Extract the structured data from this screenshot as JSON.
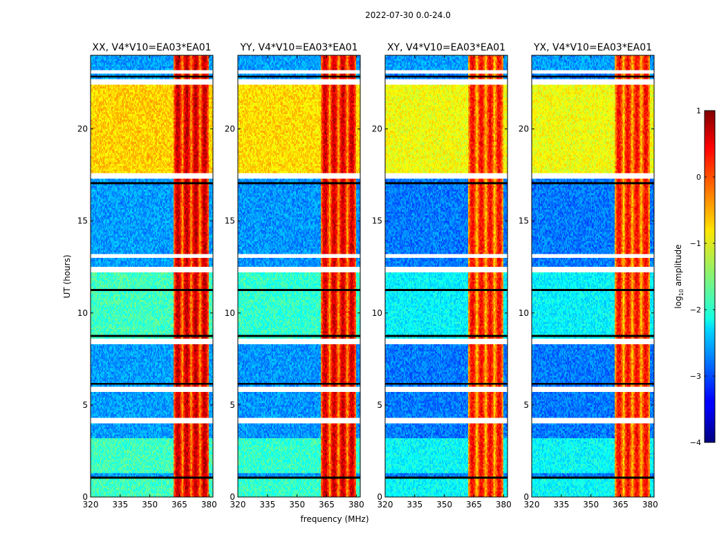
{
  "figure": {
    "suptitle": "2022-07-30 0.0-24.0"
  },
  "chart_data": {
    "type": "heatmap",
    "panels": [
      {
        "title": "XX, V4*V10=EA03*EA01",
        "level_scale": 1.0
      },
      {
        "title": "YY, V4*V10=EA03*EA01",
        "level_scale": 0.9
      },
      {
        "title": "XY, V4*V10=EA03*EA01",
        "level_scale": 0.55
      },
      {
        "title": "YX, V4*V10=EA03*EA01",
        "level_scale": 0.55
      }
    ],
    "xlabel": "frequency (MHz)",
    "ylabel": "UT (hours)",
    "xlim": [
      320,
      382
    ],
    "ylim": [
      0,
      24
    ],
    "xticks": [
      "320",
      "335",
      "350",
      "365",
      "380"
    ],
    "xtick_values": [
      320,
      335,
      350,
      365,
      380
    ],
    "yticks": [
      "0",
      "5",
      "10",
      "15",
      "20"
    ],
    "ytick_values": [
      0,
      5,
      10,
      15,
      20
    ],
    "gap_hours_white": [
      [
        4.0,
        4.3
      ],
      [
        5.7,
        5.95
      ],
      [
        8.3,
        8.6
      ],
      [
        12.2,
        12.5
      ],
      [
        13.0,
        13.2
      ],
      [
        17.3,
        17.55
      ],
      [
        22.4,
        22.7
      ],
      [
        23.0,
        23.2
      ]
    ],
    "gap_hours_black": [
      [
        0.95,
        1.05
      ],
      [
        1.3,
        1.35
      ],
      [
        6.1,
        6.15
      ],
      [
        8.7,
        8.75
      ],
      [
        11.2,
        11.25
      ],
      [
        17.0,
        17.05
      ],
      [
        22.85,
        22.9
      ]
    ],
    "rfi_band_mhz": [
      362,
      380
    ],
    "colorbar": {
      "label": "log10 amplitude",
      "label_main": "log",
      "label_sub": "10",
      "label_rest": " amplitude",
      "range": [
        -4,
        1
      ],
      "ticks": [
        "1",
        "0",
        "−1",
        "−2",
        "−3",
        "−4"
      ],
      "tick_values": [
        1,
        0,
        -1,
        -2,
        -3,
        -4
      ],
      "colormap": "jet"
    }
  }
}
